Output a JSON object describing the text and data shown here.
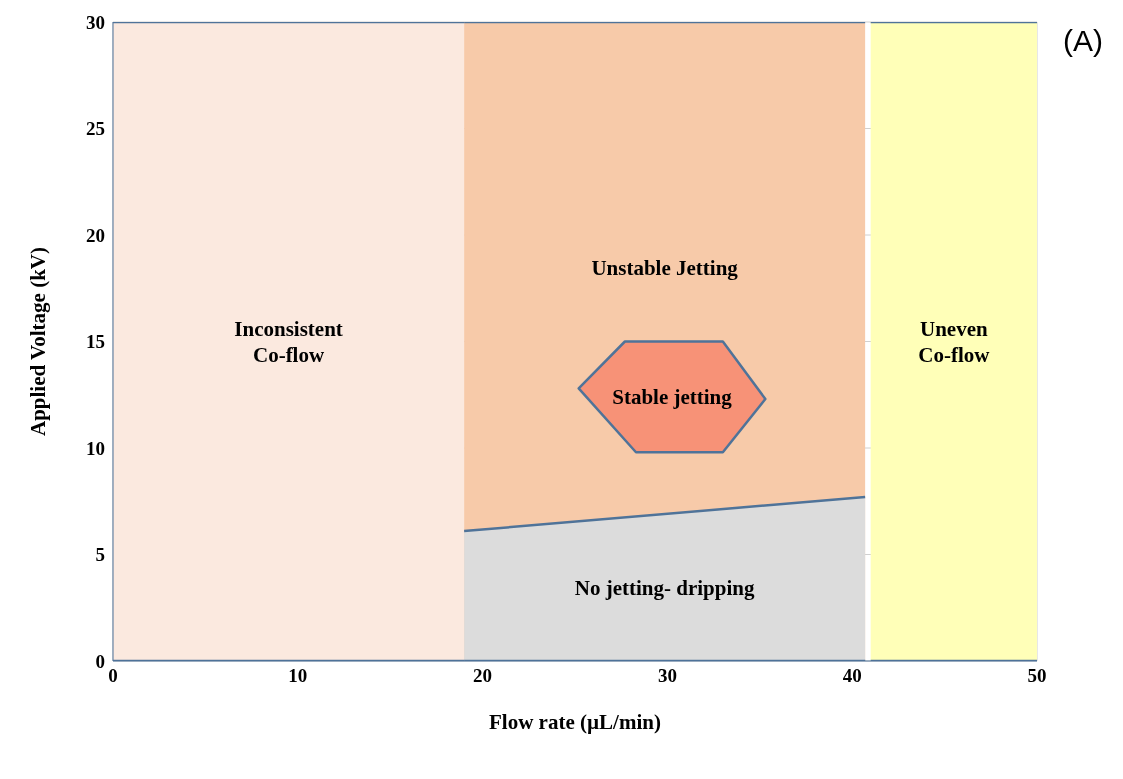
{
  "chart_data": {
    "type": "area",
    "xlabel": "Flow rate (µL/min)",
    "ylabel": "Applied Voltage (kV)",
    "xlim": [
      0,
      50
    ],
    "xticks": [
      0,
      10,
      20,
      30,
      40,
      50
    ],
    "ylim": [
      0,
      30
    ],
    "yticks": [
      0,
      5,
      10,
      15,
      20,
      25,
      30
    ],
    "grid": true,
    "series": [
      {
        "name": "Inconsistent\nCo-flow",
        "color": "#fbe9df",
        "x": [
          0,
          19
        ],
        "values": [
          30,
          30
        ]
      },
      {
        "name": "Unstable Jetting",
        "color": "#f7caa9",
        "x": [
          19,
          40.7
        ],
        "values": [
          30,
          30
        ]
      },
      {
        "name": "No jetting- dripping",
        "color": "#dcdcdc",
        "x": [
          19,
          40.7
        ],
        "values": [
          6.1,
          7.7
        ]
      },
      {
        "name": "Uneven\nCo-flow",
        "color": "#ffffb8",
        "x": [
          41,
          50
        ],
        "values": [
          30,
          30
        ]
      },
      {
        "name": "Stable jetting",
        "color": "#f79277",
        "x": [
          25.2,
          27.7,
          33,
          35.3,
          33,
          28.3,
          25.2
        ],
        "values": [
          12.8,
          15,
          15,
          12.3,
          9.8,
          9.8,
          12.8
        ]
      }
    ],
    "annotations": [
      "(A)"
    ]
  }
}
